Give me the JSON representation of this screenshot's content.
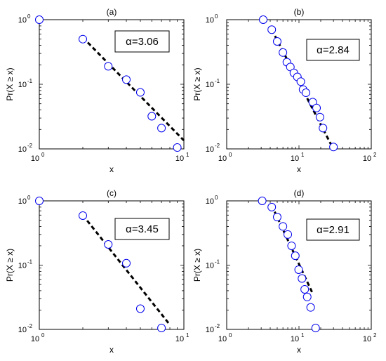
{
  "chart_data": [
    {
      "type": "scatter",
      "panel_label": "(a)",
      "x_scale": "log",
      "y_scale": "log",
      "xlim": [
        1,
        10
      ],
      "ylim": [
        0.01,
        1
      ],
      "xlabel": "x",
      "ylabel": "Pr(X ≥ x)",
      "x_ticks": [
        {
          "base": "10",
          "exp": "0"
        },
        {
          "base": "10",
          "exp": "1"
        }
      ],
      "y_ticks": [
        {
          "base": "10",
          "exp": "-2"
        },
        {
          "base": "10",
          "exp": "-1"
        },
        {
          "base": "10",
          "exp": "0"
        }
      ],
      "alpha_label": "α=3.06",
      "points": [
        {
          "x": 1,
          "y": 1
        },
        {
          "x": 2,
          "y": 0.5
        },
        {
          "x": 3,
          "y": 0.19
        },
        {
          "x": 4,
          "y": 0.118
        },
        {
          "x": 5,
          "y": 0.075
        },
        {
          "x": 6,
          "y": 0.032
        },
        {
          "x": 7,
          "y": 0.021
        },
        {
          "x": 9,
          "y": 0.0105
        }
      ],
      "fit_line": [
        {
          "x": 2,
          "y": 0.53
        },
        {
          "x": 10,
          "y": 0.0135
        }
      ]
    },
    {
      "type": "scatter",
      "panel_label": "(b)",
      "x_scale": "log",
      "y_scale": "log",
      "xlim": [
        1,
        100
      ],
      "ylim": [
        0.01,
        1
      ],
      "xlabel": "x",
      "ylabel": "Pr(X ≥ x)",
      "x_ticks": [
        {
          "base": "10",
          "exp": "0"
        },
        {
          "base": "10",
          "exp": "1"
        },
        {
          "base": "10",
          "exp": "2"
        }
      ],
      "y_ticks": [
        {
          "base": "10",
          "exp": "-2"
        },
        {
          "base": "10",
          "exp": "-1"
        },
        {
          "base": "10",
          "exp": "0"
        }
      ],
      "alpha_label": "α=2.84",
      "points": [
        {
          "x": 3.2,
          "y": 1
        },
        {
          "x": 4.2,
          "y": 0.7
        },
        {
          "x": 5,
          "y": 0.46
        },
        {
          "x": 6,
          "y": 0.31
        },
        {
          "x": 6.8,
          "y": 0.22
        },
        {
          "x": 7.6,
          "y": 0.185
        },
        {
          "x": 8.5,
          "y": 0.15
        },
        {
          "x": 9.5,
          "y": 0.13
        },
        {
          "x": 10.6,
          "y": 0.11
        },
        {
          "x": 11.4,
          "y": 0.083
        },
        {
          "x": 12.5,
          "y": 0.074
        },
        {
          "x": 15.5,
          "y": 0.053
        },
        {
          "x": 17.5,
          "y": 0.043
        },
        {
          "x": 19.5,
          "y": 0.031
        },
        {
          "x": 21.5,
          "y": 0.021
        },
        {
          "x": 30,
          "y": 0.0107
        }
      ],
      "fit_line": [
        {
          "x": 4.2,
          "y": 0.7
        },
        {
          "x": 28,
          "y": 0.0115
        }
      ]
    },
    {
      "type": "scatter",
      "panel_label": "(c)",
      "x_scale": "log",
      "y_scale": "log",
      "xlim": [
        1,
        10
      ],
      "ylim": [
        0.01,
        1
      ],
      "xlabel": "x",
      "ylabel": "Pr(X ≥ x)",
      "x_ticks": [
        {
          "base": "10",
          "exp": "0"
        },
        {
          "base": "10",
          "exp": "1"
        }
      ],
      "y_ticks": [
        {
          "base": "10",
          "exp": "-2"
        },
        {
          "base": "10",
          "exp": "-1"
        },
        {
          "base": "10",
          "exp": "0"
        }
      ],
      "alpha_label": "α=3.45",
      "points": [
        {
          "x": 1,
          "y": 1
        },
        {
          "x": 2,
          "y": 0.59
        },
        {
          "x": 3,
          "y": 0.21
        },
        {
          "x": 4,
          "y": 0.107
        },
        {
          "x": 5,
          "y": 0.021
        },
        {
          "x": 7,
          "y": 0.0105
        }
      ],
      "fit_line": [
        {
          "x": 2,
          "y": 0.6
        },
        {
          "x": 8,
          "y": 0.0118
        }
      ]
    },
    {
      "type": "scatter",
      "panel_label": "(d)",
      "x_scale": "log",
      "y_scale": "log",
      "xlim": [
        1,
        100
      ],
      "ylim": [
        0.01,
        1
      ],
      "xlabel": "x",
      "ylabel": "Pr(X ≥ x)",
      "x_ticks": [
        {
          "base": "10",
          "exp": "0"
        },
        {
          "base": "10",
          "exp": "1"
        },
        {
          "base": "10",
          "exp": "2"
        }
      ],
      "y_ticks": [
        {
          "base": "10",
          "exp": "-2"
        },
        {
          "base": "10",
          "exp": "-1"
        },
        {
          "base": "10",
          "exp": "0"
        }
      ],
      "alpha_label": "α=2.91",
      "points": [
        {
          "x": 3.1,
          "y": 1
        },
        {
          "x": 4.2,
          "y": 0.8
        },
        {
          "x": 5,
          "y": 0.56
        },
        {
          "x": 6,
          "y": 0.4
        },
        {
          "x": 7,
          "y": 0.3
        },
        {
          "x": 7.9,
          "y": 0.2
        },
        {
          "x": 8.9,
          "y": 0.14
        },
        {
          "x": 9.9,
          "y": 0.085
        },
        {
          "x": 11,
          "y": 0.062
        },
        {
          "x": 12,
          "y": 0.042
        },
        {
          "x": 13,
          "y": 0.032
        },
        {
          "x": 14.5,
          "y": 0.022
        },
        {
          "x": 17,
          "y": 0.0105
        }
      ],
      "fit_line": [
        {
          "x": 4.2,
          "y": 0.85
        },
        {
          "x": 15.5,
          "y": 0.036
        }
      ]
    }
  ]
}
